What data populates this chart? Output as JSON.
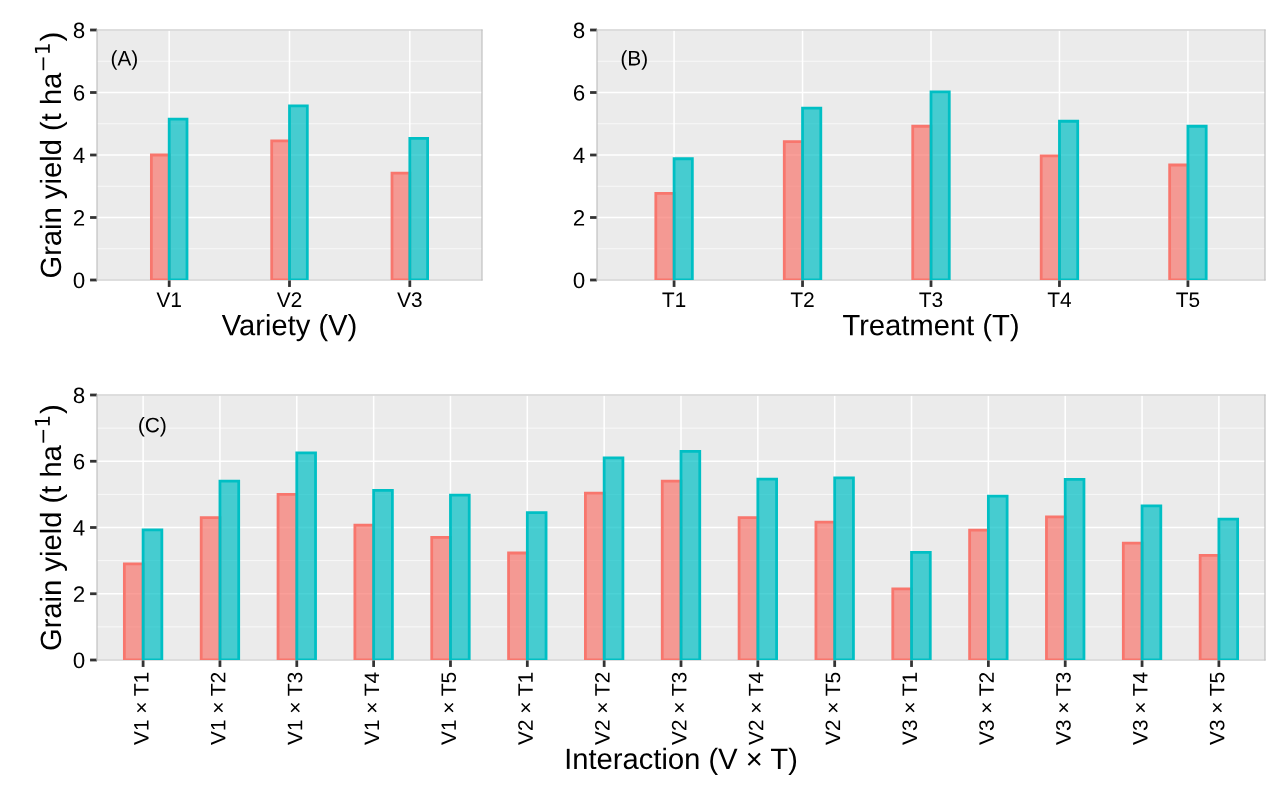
{
  "chart_data": [
    {
      "type": "bar",
      "categories": [
        "V1",
        "V2",
        "V3"
      ],
      "xlabel": "Variety (V)",
      "ylabel": "Grain yield (t ha$^{−1}$)",
      "annotations": [
        "(A)"
      ],
      "ylim": [
        0,
        8
      ],
      "yticks": [
        0,
        2,
        4,
        6,
        8
      ],
      "grid": true,
      "series": [
        {
          "color": "#f8766d",
          "values": [
            4.0,
            4.45,
            3.42
          ]
        },
        {
          "color": "#00bfc4",
          "values": [
            5.15,
            5.57,
            4.53
          ]
        }
      ]
    },
    {
      "type": "bar",
      "categories": [
        "T1",
        "T2",
        "T3",
        "T4",
        "T5"
      ],
      "xlabel": "Treatment (T)",
      "annotations": [
        "(B)"
      ],
      "ylim": [
        0,
        8
      ],
      "yticks": [
        0,
        2,
        4,
        6,
        8
      ],
      "grid": true,
      "series": [
        {
          "color": "#f8766d",
          "values": [
            2.77,
            4.43,
            4.92,
            3.97,
            3.68
          ]
        },
        {
          "color": "#00bfc4",
          "values": [
            3.88,
            5.5,
            6.02,
            5.08,
            4.92
          ]
        }
      ]
    },
    {
      "type": "bar",
      "categories": [
        "V1 × T1",
        "V1 × T2",
        "V1 × T3",
        "V1 × T4",
        "V1 × T5",
        "V2 × T1",
        "V2 × T2",
        "V2 × T3",
        "V2 × T4",
        "V2 × T5",
        "V3 × T1",
        "V3 × T2",
        "V3 × T3",
        "V3 × T4",
        "V3 × T5"
      ],
      "xlabel": "Interaction (V × T)",
      "ylabel": "Grain yield (t ha$^{−1}$)",
      "annotations": [
        "(C)"
      ],
      "ylim": [
        0,
        8
      ],
      "yticks": [
        0,
        2,
        4,
        6,
        8
      ],
      "grid": true,
      "series": [
        {
          "color": "#f8766d",
          "values": [
            2.9,
            4.3,
            5.0,
            4.07,
            3.7,
            3.23,
            5.04,
            5.4,
            4.3,
            4.16,
            2.15,
            3.92,
            4.32,
            3.53,
            3.16
          ]
        },
        {
          "color": "#00bfc4",
          "values": [
            3.93,
            5.4,
            6.25,
            5.12,
            4.98,
            4.45,
            6.1,
            6.3,
            5.46,
            5.5,
            3.25,
            4.95,
            5.45,
            4.65,
            4.25
          ]
        }
      ]
    }
  ]
}
